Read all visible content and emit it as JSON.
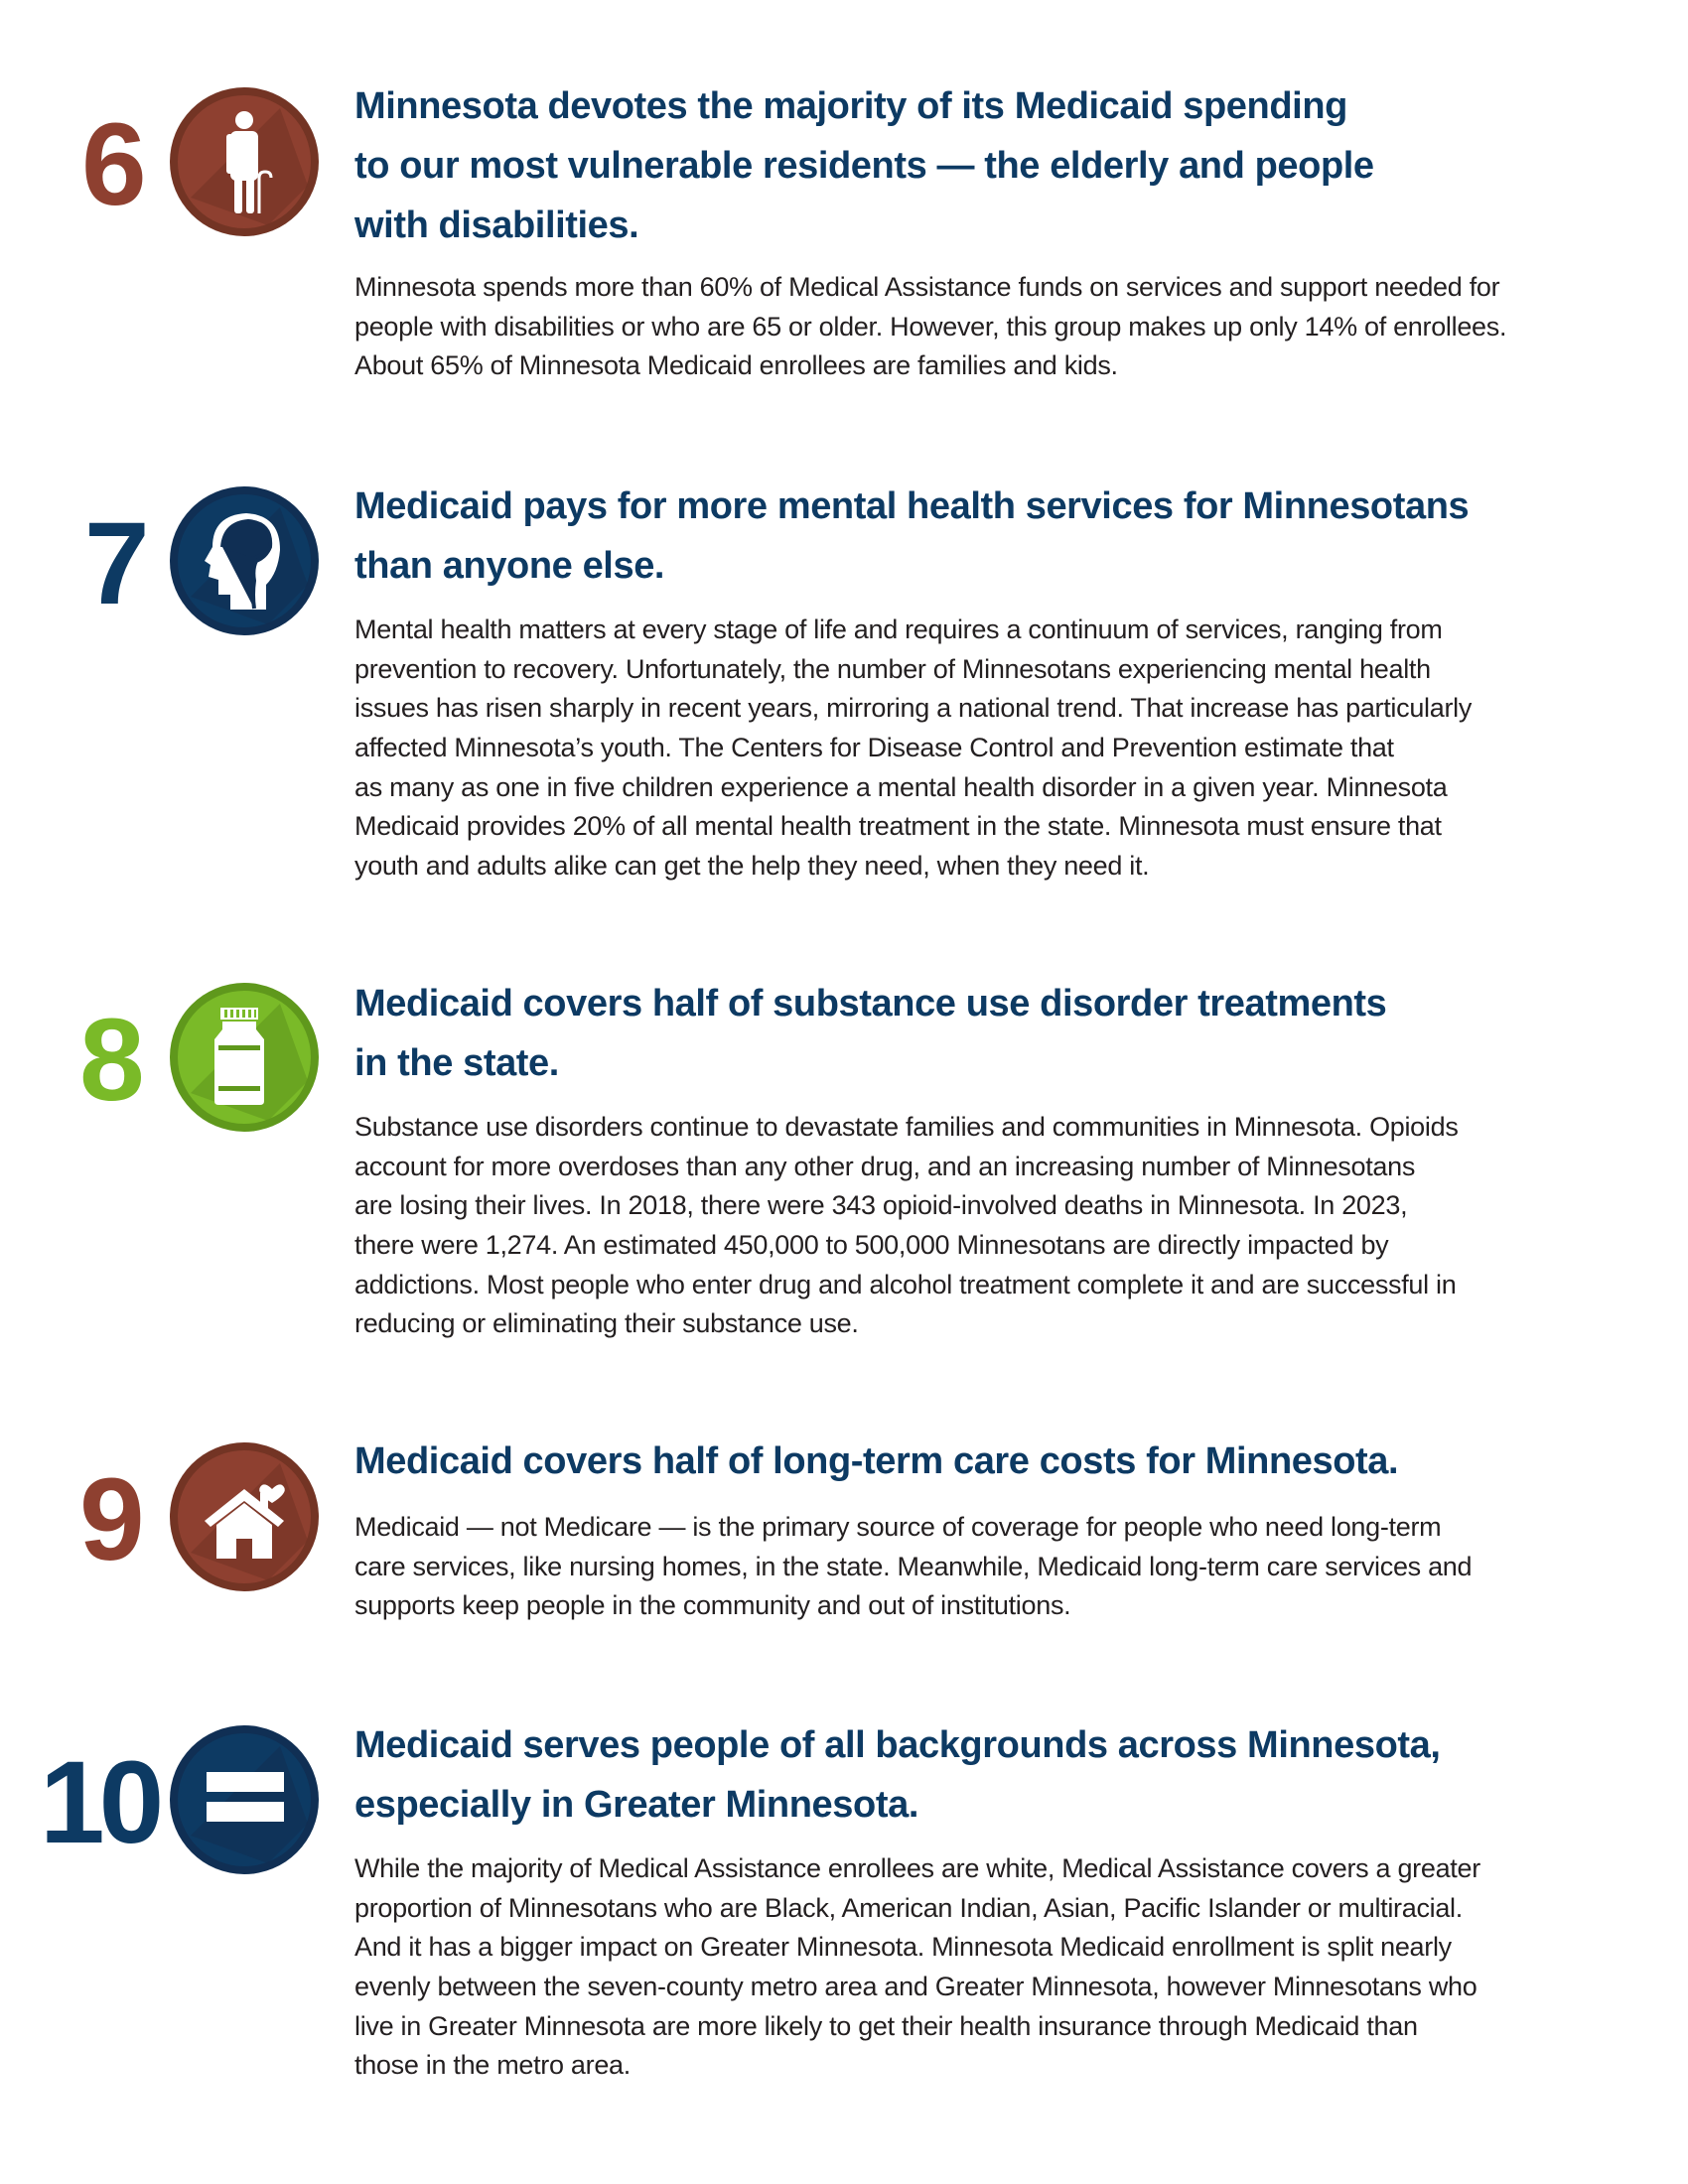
{
  "colors": {
    "navy": "#0d3a63",
    "brown": "#8e4030",
    "green": "#7aba28"
  },
  "sections": [
    {
      "number": "6",
      "icon": "elderly-person-with-cane-icon",
      "color": "#8e4030",
      "heading": [
        "Minnesota devotes the majority of its Medicaid spending",
        "to our most vulnerable residents — the elderly and people",
        "with disabilities."
      ],
      "body": [
        "Minnesota spends more than 60% of Medical Assistance funds on services and support needed for",
        "people with disabilities or who are 65 or older. However, this group makes up only 14% of enrollees.",
        "About 65% of Minnesota Medicaid enrollees are families and kids."
      ]
    },
    {
      "number": "7",
      "icon": "head-brain-icon",
      "color": "#0d3a63",
      "heading": [
        "Medicaid pays for more mental health services for Minnesotans",
        "than anyone else."
      ],
      "body": [
        "Mental health matters at every stage of life and requires a continuum of services, ranging from",
        "prevention to recovery. Unfortunately, the number of Minnesotans experiencing mental health",
        "issues has risen sharply in recent years, mirroring a national trend. That increase has particularly",
        "affected Minnesota’s youth. The Centers for Disease Control and Prevention estimate that",
        "as many as one in five children experience a mental health disorder in a given year. Minnesota",
        "Medicaid provides 20% of all mental health treatment in the state. Minnesota must ensure that",
        "youth and adults alike can get the help they need, when they need it."
      ]
    },
    {
      "number": "8",
      "icon": "medicine-bottle-icon",
      "color": "#7aba28",
      "heading": [
        "Medicaid covers half of substance use disorder treatments",
        "in the state."
      ],
      "body": [
        "Substance use disorders continue to devastate families and communities in Minnesota. Opioids",
        "account for more overdoses than any other drug, and an increasing number of Minnesotans",
        "are losing their lives. In 2018, there were 343 opioid-involved deaths in Minnesota. In 2023,",
        "there were 1,274. An estimated 450,000 to 500,000 Minnesotans are directly impacted by",
        "addictions. Most people who enter drug and alcohol treatment complete it and are successful in",
        "reducing or eliminating their substance use."
      ]
    },
    {
      "number": "9",
      "icon": "home-heart-icon",
      "color": "#8e4030",
      "heading": [
        "Medicaid covers half of long-term care costs for Minnesota."
      ],
      "body": [
        "Medicaid — not Medicare — is the primary source of coverage for people who need long-term",
        "care services, like nursing homes, in the state. Meanwhile, Medicaid long-term care services and",
        "supports keep people in the community and out of institutions."
      ]
    },
    {
      "number": "10",
      "icon": "equals-icon",
      "color": "#0d3a63",
      "heading": [
        "Medicaid serves people of all backgrounds across Minnesota,",
        "especially in Greater Minnesota."
      ],
      "body": [
        "While the majority of Medical Assistance enrollees are white, Medical Assistance covers a greater",
        "proportion of Minnesotans who are Black, American Indian, Asian, Pacific Islander or multiracial.",
        "And it has a bigger impact on Greater Minnesota. Minnesota Medicaid enrollment is split nearly",
        "evenly between the seven-county metro area and Greater Minnesota, however Minnesotans who",
        "live in Greater Minnesota are more likely to get their health insurance through Medicaid than",
        "those in the metro area."
      ]
    }
  ]
}
